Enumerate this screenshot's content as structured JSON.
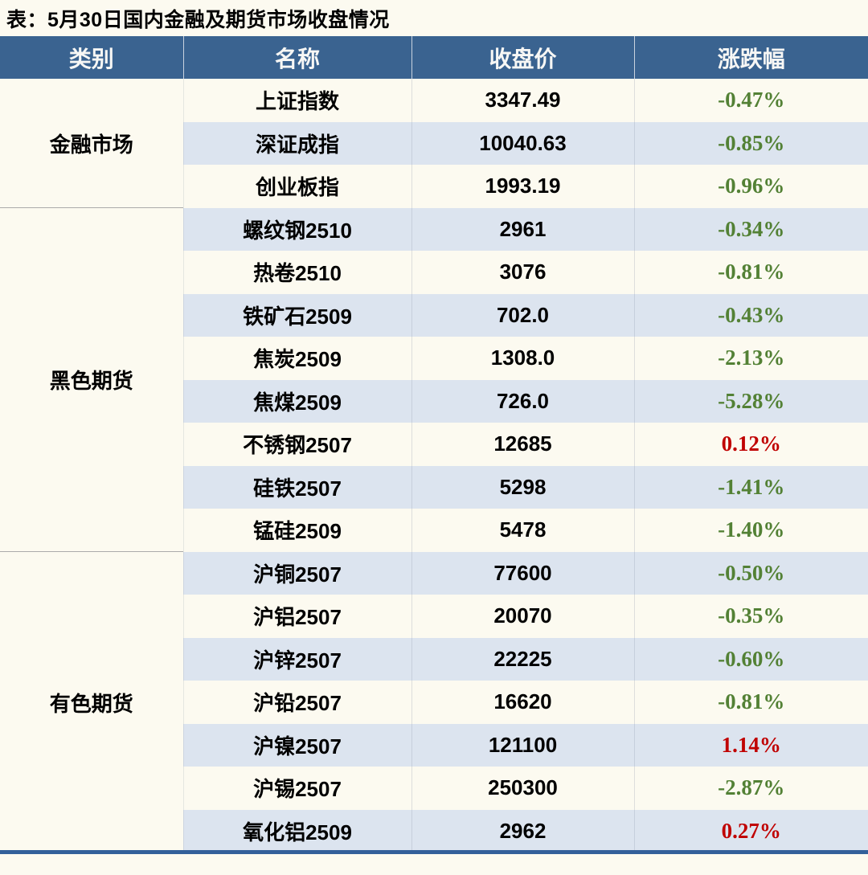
{
  "title": "表：5月30日国内金融及期货市场收盘情况",
  "colors": {
    "header_bg": "#3A6390",
    "header_text": "#F7F7F5",
    "stripe_bg": "#DCE4EF",
    "page_bg": "#FCFAF0",
    "down_green": "#538135",
    "up_red": "#C00000",
    "bottom_border": "#33609A",
    "section_divider": "#ABABAB"
  },
  "table": {
    "headers": [
      "类别",
      "名称",
      "收盘价",
      "涨跌幅"
    ],
    "sections": [
      {
        "category": "金融市场",
        "rows": [
          {
            "name": "上证指数",
            "close": "3347.49",
            "change": "-0.47%",
            "direction": "down"
          },
          {
            "name": "深证成指",
            "close": "10040.63",
            "change": "-0.85%",
            "direction": "down"
          },
          {
            "name": "创业板指",
            "close": "1993.19",
            "change": "-0.96%",
            "direction": "down"
          }
        ]
      },
      {
        "category": "黑色期货",
        "rows": [
          {
            "name": "螺纹钢2510",
            "close": "2961",
            "change": "-0.34%",
            "direction": "down"
          },
          {
            "name": "热卷2510",
            "close": "3076",
            "change": "-0.81%",
            "direction": "down"
          },
          {
            "name": "铁矿石2509",
            "close": "702.0",
            "change": "-0.43%",
            "direction": "down"
          },
          {
            "name": "焦炭2509",
            "close": "1308.0",
            "change": "-2.13%",
            "direction": "down"
          },
          {
            "name": "焦煤2509",
            "close": "726.0",
            "change": "-5.28%",
            "direction": "down"
          },
          {
            "name": "不锈钢2507",
            "close": "12685",
            "change": "0.12%",
            "direction": "up"
          },
          {
            "name": "硅铁2507",
            "close": "5298",
            "change": "-1.41%",
            "direction": "down"
          },
          {
            "name": "锰硅2509",
            "close": "5478",
            "change": "-1.40%",
            "direction": "down"
          }
        ]
      },
      {
        "category": "有色期货",
        "rows": [
          {
            "name": "沪铜2507",
            "close": "77600",
            "change": "-0.50%",
            "direction": "down"
          },
          {
            "name": "沪铝2507",
            "close": "20070",
            "change": "-0.35%",
            "direction": "down"
          },
          {
            "name": "沪锌2507",
            "close": "22225",
            "change": "-0.60%",
            "direction": "down"
          },
          {
            "name": "沪铅2507",
            "close": "16620",
            "change": "-0.81%",
            "direction": "down"
          },
          {
            "name": "沪镍2507",
            "close": "121100",
            "change": "1.14%",
            "direction": "up"
          },
          {
            "name": "沪锡2507",
            "close": "250300",
            "change": "-2.87%",
            "direction": "down"
          },
          {
            "name": "氧化铝2509",
            "close": "2962",
            "change": "0.27%",
            "direction": "up"
          }
        ]
      }
    ]
  },
  "chart_data": {
    "type": "table",
    "title": "表：5月30日国内金融及期货市场收盘情况",
    "columns": [
      "类别",
      "名称",
      "收盘价",
      "涨跌幅"
    ],
    "rows": [
      [
        "金融市场",
        "上证指数",
        3347.49,
        "-0.47%"
      ],
      [
        "金融市场",
        "深证成指",
        10040.63,
        "-0.85%"
      ],
      [
        "金融市场",
        "创业板指",
        1993.19,
        "-0.96%"
      ],
      [
        "黑色期货",
        "螺纹钢2510",
        2961,
        "-0.34%"
      ],
      [
        "黑色期货",
        "热卷2510",
        3076,
        "-0.81%"
      ],
      [
        "黑色期货",
        "铁矿石2509",
        702.0,
        "-0.43%"
      ],
      [
        "黑色期货",
        "焦炭2509",
        1308.0,
        "-2.13%"
      ],
      [
        "黑色期货",
        "焦煤2509",
        726.0,
        "-5.28%"
      ],
      [
        "黑色期货",
        "不锈钢2507",
        12685,
        "0.12%"
      ],
      [
        "黑色期货",
        "硅铁2507",
        5298,
        "-1.41%"
      ],
      [
        "黑色期货",
        "锰硅2509",
        5478,
        "-1.40%"
      ],
      [
        "有色期货",
        "沪铜2507",
        77600,
        "-0.50%"
      ],
      [
        "有色期货",
        "沪铝2507",
        20070,
        "-0.35%"
      ],
      [
        "有色期货",
        "沪锌2507",
        22225,
        "-0.60%"
      ],
      [
        "有色期货",
        "沪铅2507",
        16620,
        "-0.81%"
      ],
      [
        "有色期货",
        "沪镍2507",
        121100,
        "1.14%"
      ],
      [
        "有色期货",
        "沪锡2507",
        250300,
        "-2.87%"
      ],
      [
        "有色期货",
        "氧化铝2509",
        2962,
        "0.27%"
      ]
    ],
    "notes": "涨跌幅 negative values rendered green (#538135), positive values red (#C00000); rows alternate white / light-blue stripes"
  }
}
